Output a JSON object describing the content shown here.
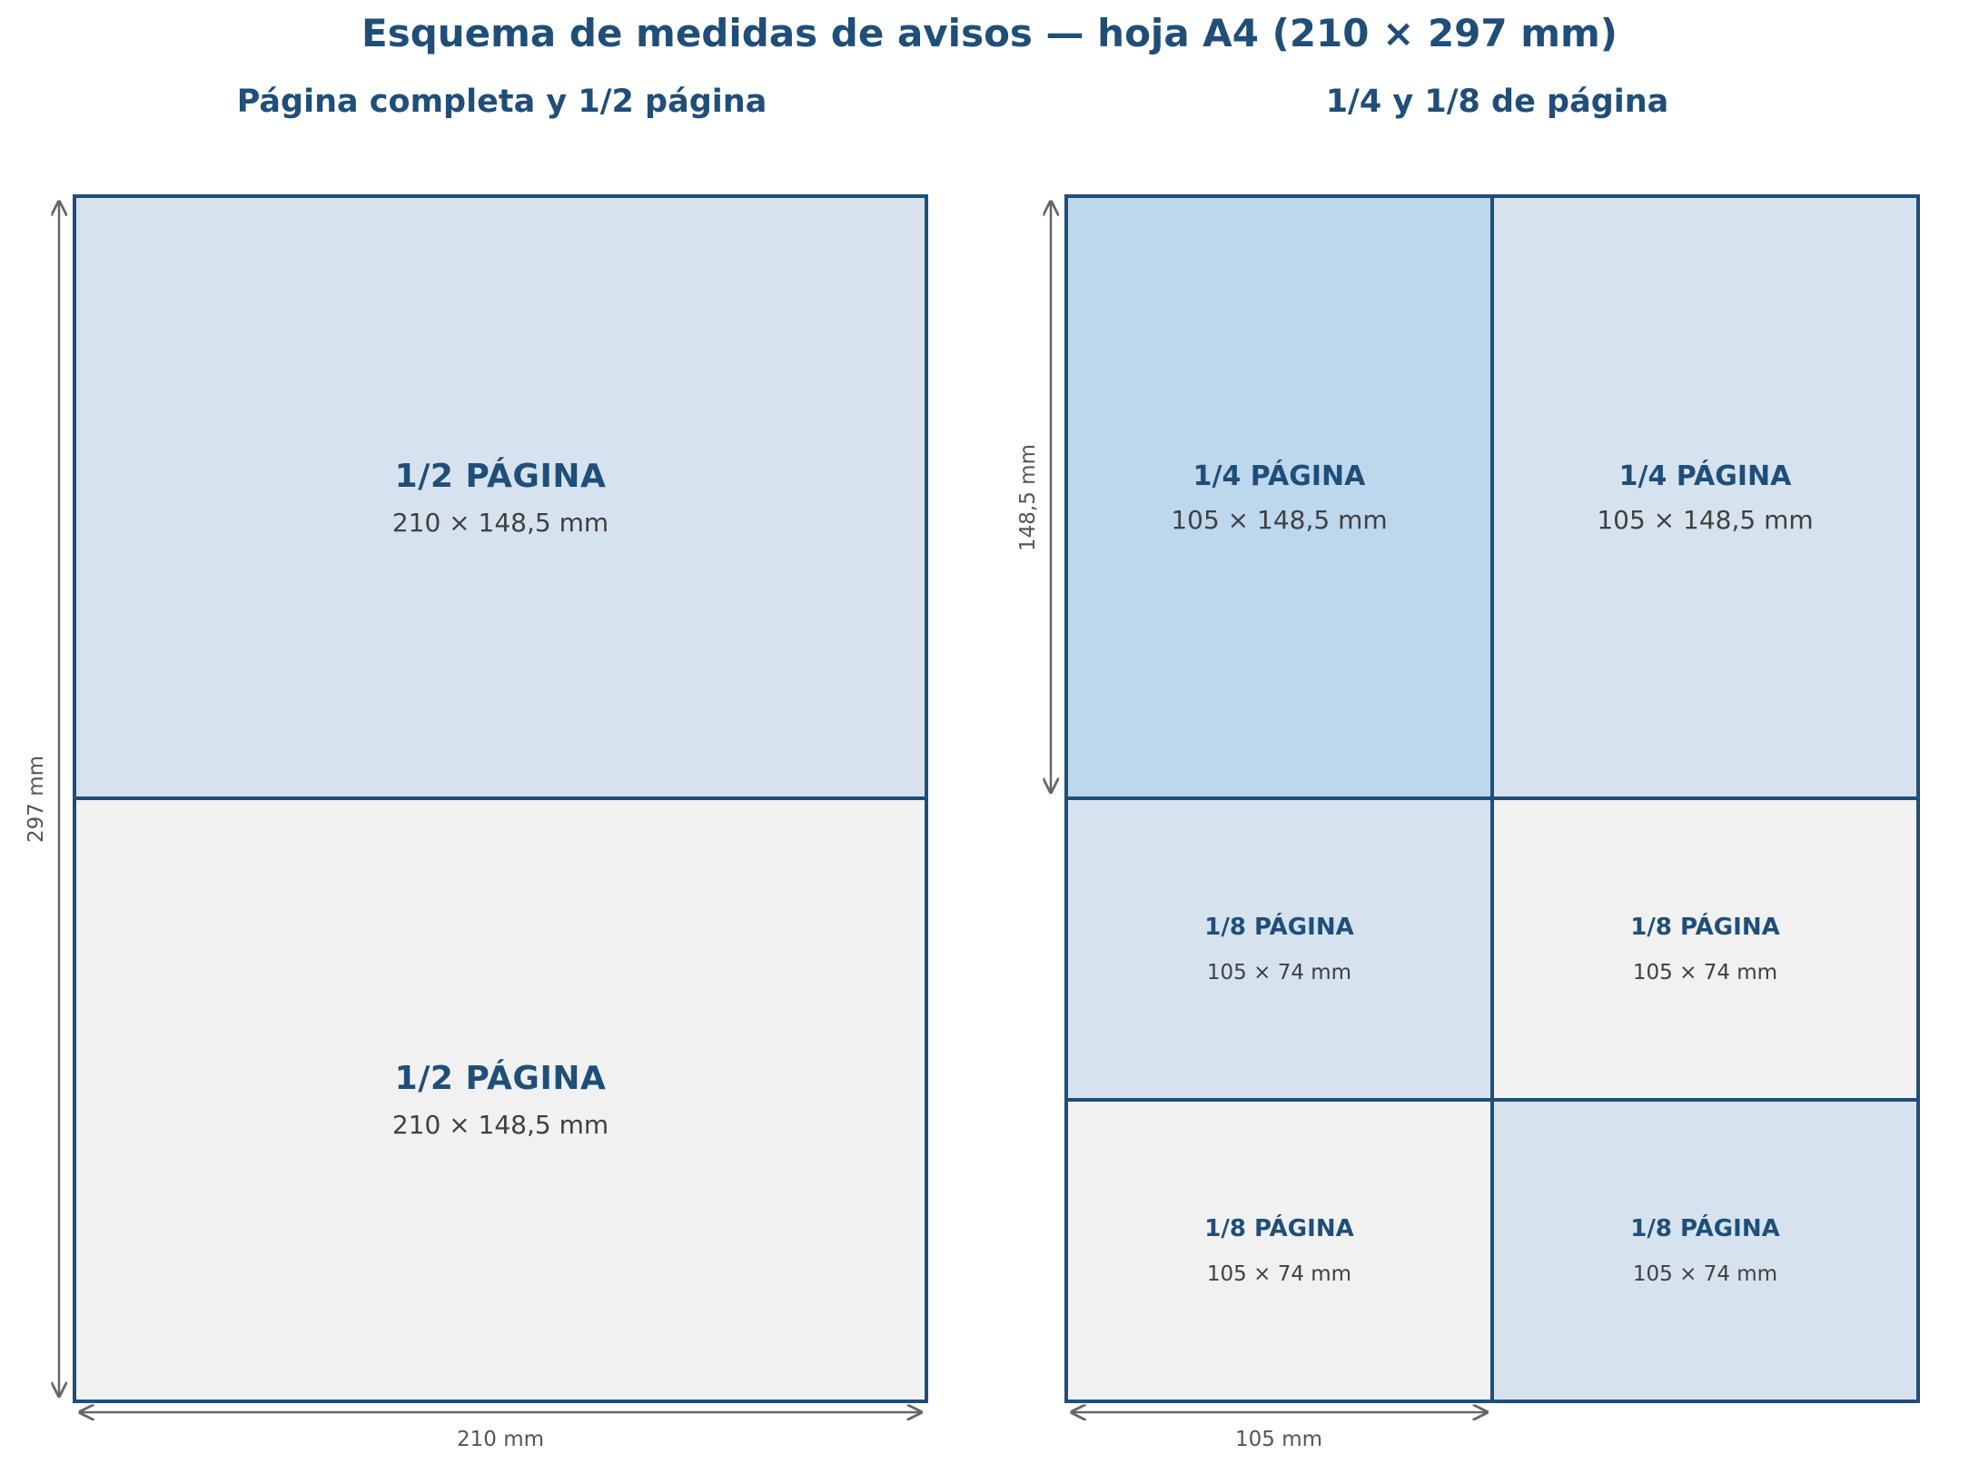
{
  "title": "Esquema de medidas de avisos — hoja A4 (210 × 297 mm)",
  "left_panel": {
    "subtitle": "Página completa y 1/2 página",
    "cells": [
      {
        "label": "1/2 PÁGINA",
        "dims": "210 × 148,5 mm",
        "fill": "#d6e3ef"
      },
      {
        "label": "1/2 PÁGINA",
        "dims": "210 × 148,5 mm",
        "fill": "#f1f1f1"
      }
    ],
    "width_label": "210 mm",
    "height_label": "297 mm"
  },
  "right_panel": {
    "subtitle": "1/4 y 1/8 de página",
    "quarters": [
      {
        "label": "1/4 PÁGINA",
        "dims": "105 × 148,5 mm",
        "fill": "#bdd7ed"
      },
      {
        "label": "1/4 PÁGINA",
        "dims": "105 × 148,5 mm",
        "fill": "#d6e3ef"
      }
    ],
    "eighths": [
      {
        "label": "1/8 PÁGINA",
        "dims": "105 × 74 mm",
        "fill": "#d6e3ef"
      },
      {
        "label": "1/8 PÁGINA",
        "dims": "105 × 74 mm",
        "fill": "#f1f1f1"
      },
      {
        "label": "1/8 PÁGINA",
        "dims": "105 × 74 mm",
        "fill": "#f1f1f1"
      },
      {
        "label": "1/8 PÁGINA",
        "dims": "105 × 74 mm",
        "fill": "#d6e3ef"
      }
    ],
    "width_label": "105 mm",
    "height_label": "148,5 mm"
  },
  "colors": {
    "border": "#1f4e79",
    "text_title": "#1f4e79",
    "dimension_arrow": "#666666"
  }
}
